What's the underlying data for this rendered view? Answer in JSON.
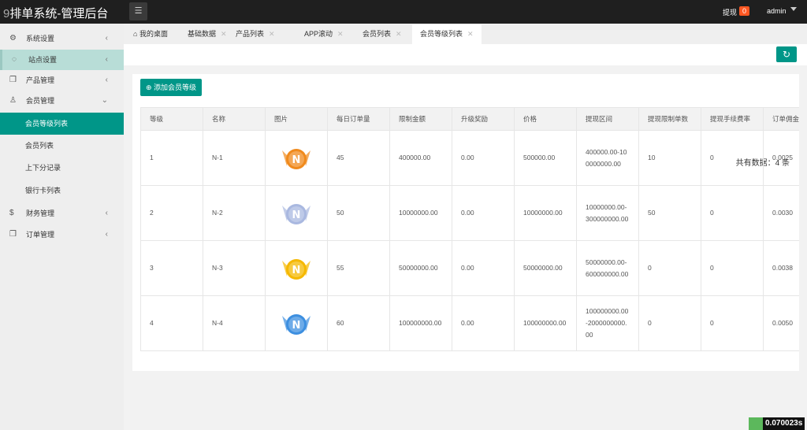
{
  "header": {
    "logo_prefix": "9",
    "title": "排单系统-管理后台",
    "withdraw_label": "提现",
    "withdraw_count": "0",
    "user": "admin"
  },
  "sidebar": {
    "items": [
      {
        "label": "系统设置",
        "icon": "gear-icon"
      },
      {
        "label": "站点设置",
        "icon": "site-icon"
      },
      {
        "label": "产品管理",
        "icon": "box-icon"
      },
      {
        "label": "会员管理",
        "icon": "user-icon"
      },
      {
        "label": "会员等级列表"
      },
      {
        "label": "会员列表"
      },
      {
        "label": "上下分记录"
      },
      {
        "label": "银行卡列表"
      },
      {
        "label": "财务管理",
        "icon": "dollar-icon"
      },
      {
        "label": "订单管理",
        "icon": "box-icon"
      }
    ]
  },
  "tabs": [
    "我的桌面",
    "基础数据",
    "产品列表",
    "APP滚动",
    "会员列表",
    "会员等级列表"
  ],
  "toolbar": {
    "add_label": "添加会员等级",
    "count_text": "共有数据：4 条"
  },
  "table": {
    "headers": [
      "等级",
      "名称",
      "图片",
      "每日订单量",
      "限制金额",
      "升级奖励",
      "价格",
      "提现区间",
      "提现限制单数",
      "提现手续费率",
      "订单佣金"
    ],
    "rows": [
      [
        "1",
        "N-1",
        "",
        "45",
        "400000.00",
        "0.00",
        "500000.00",
        "400000.00-10 0000000.00",
        "10",
        "0",
        "0.0025"
      ],
      [
        "2",
        "N-2",
        "",
        "50",
        "10000000.00",
        "0.00",
        "10000000.00",
        "10000000.00- 300000000.00",
        "50",
        "0",
        "0.0030"
      ],
      [
        "3",
        "N-3",
        "",
        "55",
        "50000000.00",
        "0.00",
        "50000000.00",
        "50000000.00- 600000000.00",
        "0",
        "0",
        "0.0038"
      ],
      [
        "4",
        "N-4",
        "",
        "60",
        "100000000.00",
        "0.00",
        "100000000.00",
        "100000000.00 -2000000000. 00",
        "0",
        "0",
        "0.0050"
      ]
    ]
  },
  "medal_colors": [
    "#f08a1c",
    "#a9b8e0",
    "#f5b800",
    "#3d8fe0"
  ],
  "timer": "0.070023s",
  "accent": "#009688"
}
